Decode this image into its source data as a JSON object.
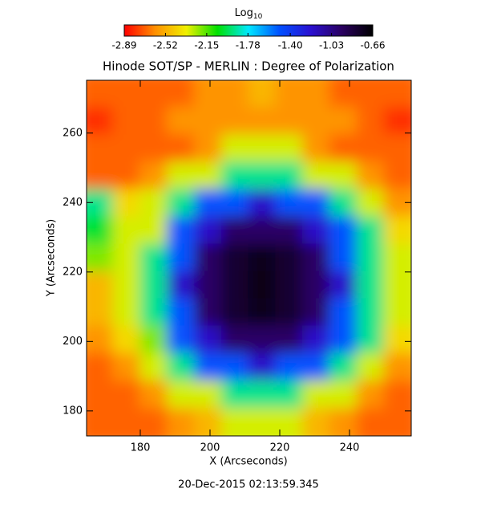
{
  "chart_data": {
    "type": "heatmap",
    "title": "Hinode SOT/SP - MERLIN : Degree of Polarization",
    "x_label": "X (Arcseconds)",
    "y_label": "Y (Arcseconds)",
    "footer": "20-Dec-2015 02:13:59.345",
    "colorbar_label": "Log",
    "colorbar_label_sub": "10",
    "clim": [
      -2.89,
      -0.66
    ],
    "cticks": [
      -2.89,
      -2.52,
      -2.15,
      -1.78,
      {
        "value": -1.4,
        "label": "-1.40"
      },
      -1.03,
      -0.66
    ],
    "colormap": [
      "#ff0000",
      "#ff9000",
      "#f0f000",
      "#00e000",
      "#00e8ff",
      "#0050ff",
      "#2a10d0",
      "#2a0060",
      "#000000"
    ],
    "xlim": [
      164.6,
      257.7
    ],
    "ylim": [
      172.8,
      275.2
    ],
    "xticks": [
      180,
      200,
      220,
      240
    ],
    "yticks": [
      180,
      200,
      220,
      240,
      260
    ],
    "x": [
      168.5,
      176.2,
      184,
      191.7,
      199.5,
      207.3,
      215,
      222.8,
      230.6,
      238.3,
      246.1,
      253.8
    ],
    "y": [
      271.3,
      263.4,
      255.5,
      247.6,
      239.8,
      231.9,
      224,
      216.1,
      208.3,
      200.4,
      192.5,
      184.6,
      176.7
    ],
    "z": [
      [
        -2.7,
        -2.7,
        -2.7,
        -2.7,
        -2.6,
        -2.6,
        -2.5,
        -2.6,
        -2.6,
        -2.7,
        -2.7,
        -2.7
      ],
      [
        -2.8,
        -2.7,
        -2.7,
        -2.6,
        -2.6,
        -2.6,
        -2.6,
        -2.6,
        -2.6,
        -2.6,
        -2.7,
        -2.8
      ],
      [
        -2.7,
        -2.7,
        -2.7,
        -2.7,
        -2.6,
        -2.3,
        -2.3,
        -2.3,
        -2.6,
        -2.7,
        -2.7,
        -2.7
      ],
      [
        -2.7,
        -2.7,
        -2.6,
        -2.3,
        -2.3,
        -1.9,
        -1.9,
        -1.9,
        -2.3,
        -2.3,
        -2.6,
        -2.7
      ],
      [
        -1.9,
        -2.4,
        -2.3,
        -1.9,
        -1.5,
        -1.5,
        -1.2,
        -1.5,
        -1.5,
        -1.9,
        -2.3,
        -2.6
      ],
      [
        -2.0,
        -2.3,
        -2.3,
        -1.5,
        -1.2,
        -0.95,
        -0.95,
        -0.95,
        -1.2,
        -1.5,
        -1.9,
        -2.4
      ],
      [
        -2.2,
        -2.3,
        -1.9,
        -1.5,
        -0.95,
        -0.8,
        -0.75,
        -0.8,
        -0.95,
        -1.5,
        -1.9,
        -2.3
      ],
      [
        -2.5,
        -2.3,
        -1.9,
        -1.2,
        -0.95,
        -0.8,
        -0.72,
        -0.8,
        -0.95,
        -1.2,
        -1.9,
        -2.3
      ],
      [
        -2.5,
        -2.3,
        -1.9,
        -1.5,
        -0.95,
        -0.8,
        -0.75,
        -0.8,
        -0.95,
        -1.5,
        -1.9,
        -2.3
      ],
      [
        -2.6,
        -2.4,
        -2.2,
        -1.5,
        -1.2,
        -0.95,
        -0.95,
        -0.95,
        -1.2,
        -1.5,
        -1.9,
        -2.4
      ],
      [
        -2.7,
        -2.6,
        -2.3,
        -1.9,
        -1.5,
        -1.5,
        -1.2,
        -1.5,
        -1.5,
        -1.9,
        -2.3,
        -2.6
      ],
      [
        -2.7,
        -2.7,
        -2.6,
        -2.3,
        -2.3,
        -1.9,
        -1.9,
        -1.9,
        -2.3,
        -2.3,
        -2.6,
        -2.7
      ],
      [
        -2.7,
        -2.7,
        -2.7,
        -2.6,
        -2.5,
        -2.3,
        -2.3,
        -2.3,
        -2.5,
        -2.6,
        -2.7,
        -2.7
      ]
    ]
  }
}
